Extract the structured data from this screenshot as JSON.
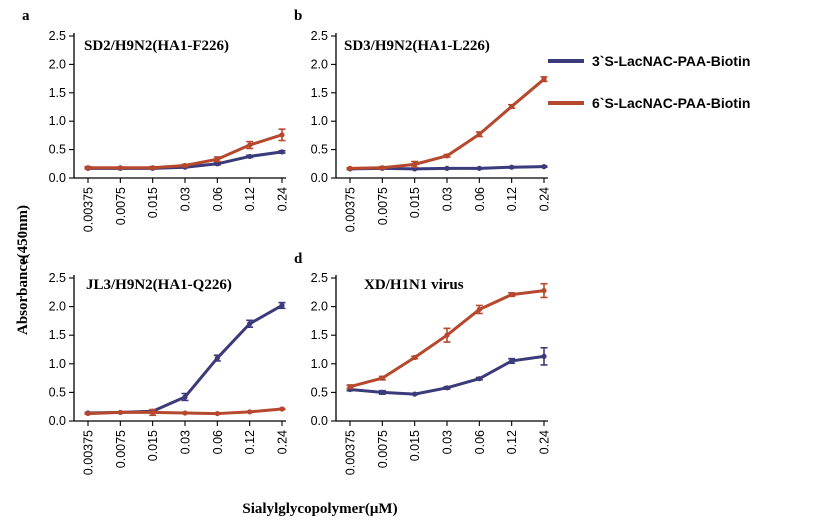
{
  "figure": {
    "ylabel": "Absorbance(450nm)",
    "xlabel": "Sialylglycopolymer(μM)"
  },
  "legend": [
    {
      "name": "3`S-LacNAC-PAA-Biotin",
      "color": "#3b3a7a"
    },
    {
      "name": "6`S-LacNAC-PAA-Biotin",
      "color": "#b5482d"
    }
  ],
  "colors": {
    "s3": "#3b3a7a",
    "s6": "#b5482d"
  },
  "chart_data": [
    {
      "panel": "a",
      "type": "line",
      "title": "SD2/H9N2(HA1-F226)",
      "categories": [
        "0.00375",
        "0.0075",
        "0.015",
        "0.03",
        "0.06",
        "0.12",
        "0.24"
      ],
      "yticks": [
        "0.0",
        "0.5",
        "1.0",
        "1.5",
        "2.0",
        "2.5"
      ],
      "ylim": [
        0,
        2.5
      ],
      "series": [
        {
          "name": "3`S-LacNAC-PAA-Biotin",
          "values": [
            0.17,
            0.17,
            0.17,
            0.19,
            0.25,
            0.38,
            0.46
          ],
          "errors": [
            0.01,
            0.01,
            0.01,
            0.01,
            0.02,
            0.02,
            0.02
          ]
        },
        {
          "name": "6`S-LacNAC-PAA-Biotin",
          "values": [
            0.18,
            0.18,
            0.18,
            0.22,
            0.33,
            0.58,
            0.76
          ],
          "errors": [
            0.02,
            0.01,
            0.02,
            0.02,
            0.04,
            0.06,
            0.1
          ]
        }
      ]
    },
    {
      "panel": "b",
      "type": "line",
      "title": "SD3/H9N2(HA1-L226)",
      "categories": [
        "0.00375",
        "0.0075",
        "0.015",
        "0.03",
        "0.06",
        "0.12",
        "0.24"
      ],
      "yticks": [
        "0.0",
        "0.5",
        "1.0",
        "1.5",
        "2.0",
        "2.5"
      ],
      "ylim": [
        0,
        2.5
      ],
      "series": [
        {
          "name": "3`S-LacNAC-PAA-Biotin",
          "values": [
            0.16,
            0.17,
            0.16,
            0.17,
            0.17,
            0.19,
            0.2
          ],
          "errors": [
            0.01,
            0.01,
            0.01,
            0.01,
            0.01,
            0.01,
            0.01
          ]
        },
        {
          "name": "6`S-LacNAC-PAA-Biotin",
          "values": [
            0.17,
            0.18,
            0.24,
            0.39,
            0.77,
            1.26,
            1.74
          ],
          "errors": [
            0.01,
            0.02,
            0.05,
            0.02,
            0.04,
            0.03,
            0.04
          ]
        }
      ]
    },
    {
      "panel": "c",
      "type": "line",
      "title": "JL3/H9N2(HA1-Q226)",
      "categories": [
        "0.00375",
        "0.0075",
        "0.015",
        "0.03",
        "0.06",
        "0.12",
        "0.24"
      ],
      "yticks": [
        "0.0",
        "0.5",
        "1.0",
        "1.5",
        "2.0",
        "2.5"
      ],
      "ylim": [
        0,
        2.5
      ],
      "series": [
        {
          "name": "3`S-LacNAC-PAA-Biotin",
          "values": [
            0.14,
            0.15,
            0.17,
            0.42,
            1.1,
            1.7,
            2.02
          ],
          "errors": [
            0.01,
            0.01,
            0.01,
            0.06,
            0.05,
            0.06,
            0.05
          ]
        },
        {
          "name": "6`S-LacNAC-PAA-Biotin",
          "values": [
            0.13,
            0.15,
            0.15,
            0.14,
            0.13,
            0.16,
            0.21
          ],
          "errors": [
            0.01,
            0.01,
            0.05,
            0.01,
            0.01,
            0.01,
            0.01
          ]
        }
      ]
    },
    {
      "panel": "d",
      "type": "line",
      "title": "XD/H1N1 virus",
      "categories": [
        "0.00375",
        "0.0075",
        "0.015",
        "0.03",
        "0.06",
        "0.12",
        "0.24"
      ],
      "yticks": [
        "0.0",
        "0.5",
        "1.0",
        "1.5",
        "2.0",
        "2.5"
      ],
      "ylim": [
        0,
        2.5
      ],
      "series": [
        {
          "name": "3`S-LacNAC-PAA-Biotin",
          "values": [
            0.55,
            0.5,
            0.47,
            0.58,
            0.74,
            1.05,
            1.13
          ],
          "errors": [
            0.02,
            0.03,
            0.01,
            0.02,
            0.02,
            0.04,
            0.15
          ]
        },
        {
          "name": "6`S-LacNAC-PAA-Biotin",
          "values": [
            0.6,
            0.75,
            1.11,
            1.5,
            1.95,
            2.21,
            2.28
          ],
          "errors": [
            0.03,
            0.03,
            0.02,
            0.12,
            0.07,
            0.03,
            0.12
          ]
        }
      ]
    }
  ]
}
